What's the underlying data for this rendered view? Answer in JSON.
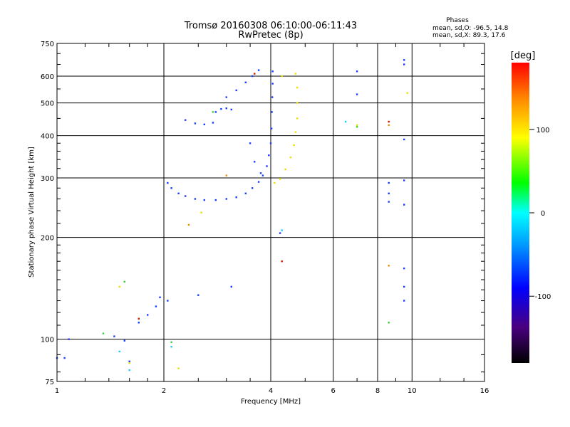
{
  "chart_data": {
    "type": "scatter",
    "title": "Tromsø 20160308 06:10:00-06:11:43",
    "subtitle": "RwPretec (8p)",
    "info_header": "Phases",
    "info_lines": [
      "mean, sd,O: -96.5, 14.8",
      "mean, sd,X:  89.3, 17.6"
    ],
    "xlabel": "Frequency [MHz]",
    "ylabel": "Stationary phase Virtual Height [km]",
    "x_scale": "log2",
    "y_scale": "log",
    "xlim": [
      1,
      16
    ],
    "ylim": [
      75,
      750
    ],
    "x_ticks": [
      1,
      2,
      4,
      6,
      8,
      10,
      16
    ],
    "x_tick_labels": [
      "1",
      "2",
      "4",
      "6",
      "8",
      "10",
      "16"
    ],
    "y_ticks": [
      75,
      100,
      200,
      300,
      400,
      500,
      600,
      750
    ],
    "y_tick_labels": [
      "75",
      "100",
      "200",
      "300",
      "400",
      "500",
      "600",
      "750"
    ],
    "grid": true,
    "colorbar": {
      "label": "[deg]",
      "range": [
        -180,
        180
      ],
      "ticks": [
        100,
        0,
        -100
      ],
      "tick_labels": [
        "100",
        "0",
        "-100"
      ]
    },
    "series": [
      {
        "color": "#1a3cff",
        "phase": -100,
        "points": [
          [
            2.05,
            290
          ],
          [
            2.1,
            280
          ],
          [
            2.2,
            270
          ],
          [
            2.3,
            265
          ],
          [
            2.45,
            260
          ],
          [
            2.6,
            258
          ],
          [
            2.8,
            258
          ],
          [
            3.0,
            260
          ],
          [
            3.2,
            263
          ],
          [
            3.4,
            270
          ],
          [
            3.55,
            280
          ],
          [
            3.7,
            292
          ],
          [
            3.8,
            305
          ],
          [
            3.9,
            325
          ],
          [
            3.95,
            350
          ],
          [
            4.0,
            380
          ],
          [
            4.02,
            420
          ],
          [
            4.03,
            470
          ],
          [
            4.04,
            520
          ],
          [
            4.05,
            570
          ],
          [
            4.05,
            620
          ],
          [
            2.3,
            445
          ],
          [
            2.45,
            435
          ],
          [
            2.6,
            432
          ],
          [
            2.75,
            437
          ],
          [
            2.8,
            470
          ],
          [
            2.9,
            480
          ],
          [
            3.0,
            482
          ],
          [
            3.1,
            478
          ],
          [
            3.0,
            520
          ],
          [
            3.2,
            545
          ],
          [
            3.4,
            575
          ],
          [
            3.55,
            600
          ],
          [
            3.7,
            625
          ],
          [
            3.5,
            380
          ],
          [
            3.6,
            335
          ],
          [
            3.75,
            310
          ],
          [
            1.0,
            88
          ],
          [
            1.05,
            88
          ],
          [
            1.08,
            100
          ],
          [
            1.45,
            102
          ],
          [
            1.55,
            99
          ],
          [
            1.6,
            86
          ],
          [
            1.7,
            112
          ],
          [
            1.8,
            118
          ],
          [
            1.9,
            125
          ],
          [
            1.95,
            133
          ],
          [
            2.05,
            130
          ],
          [
            2.5,
            135
          ],
          [
            3.1,
            143
          ],
          [
            4.25,
            206
          ],
          [
            7.0,
            620
          ],
          [
            7.0,
            530
          ],
          [
            8.6,
            290
          ],
          [
            8.6,
            270
          ],
          [
            8.6,
            255
          ],
          [
            9.5,
            670
          ],
          [
            9.5,
            650
          ],
          [
            9.5,
            390
          ],
          [
            9.5,
            295
          ],
          [
            9.5,
            250
          ],
          [
            9.5,
            162
          ],
          [
            9.5,
            143
          ],
          [
            9.5,
            130
          ]
        ]
      },
      {
        "color": "#e8e000",
        "phase": 100,
        "points": [
          [
            4.1,
            290
          ],
          [
            4.25,
            298
          ],
          [
            4.4,
            318
          ],
          [
            4.55,
            345
          ],
          [
            4.65,
            375
          ],
          [
            4.7,
            410
          ],
          [
            4.75,
            450
          ],
          [
            4.75,
            500
          ],
          [
            4.75,
            555
          ],
          [
            4.7,
            610
          ],
          [
            4.3,
            600
          ],
          [
            1.5,
            143
          ],
          [
            1.6,
            85
          ],
          [
            2.55,
            237
          ],
          [
            2.2,
            82
          ],
          [
            9.7,
            535
          ],
          [
            7.0,
            430
          ]
        ]
      },
      {
        "color": "#1ec8ff",
        "phase": -40,
        "points": [
          [
            6.5,
            440
          ],
          [
            2.1,
            95
          ],
          [
            1.6,
            81
          ],
          [
            1.5,
            92
          ],
          [
            4.3,
            210
          ]
        ]
      },
      {
        "color": "#d01a00",
        "phase": 160,
        "points": [
          [
            4.3,
            170
          ],
          [
            3.6,
            610
          ],
          [
            8.6,
            440
          ],
          [
            1.7,
            115
          ]
        ]
      },
      {
        "color": "#e89000",
        "phase": 130,
        "points": [
          [
            8.6,
            430
          ],
          [
            8.6,
            165
          ],
          [
            2.35,
            218
          ],
          [
            3.0,
            305
          ]
        ]
      },
      {
        "color": "#3ad43a",
        "phase": 20,
        "points": [
          [
            7.0,
            425
          ],
          [
            8.6,
            112
          ],
          [
            1.35,
            104
          ],
          [
            1.55,
            148
          ],
          [
            2.1,
            98
          ],
          [
            2.75,
            470
          ]
        ]
      }
    ]
  }
}
